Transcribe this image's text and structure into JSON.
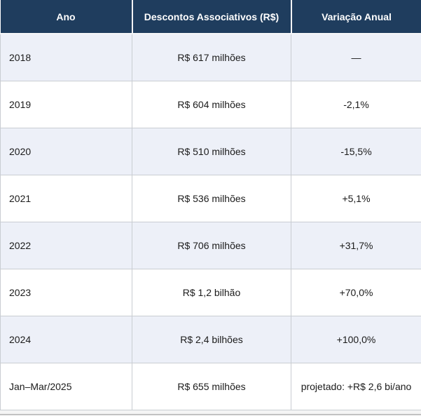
{
  "chart_data": {
    "type": "table",
    "columns": [
      "Ano",
      "Descontos Associativos (R$)",
      "Variação Anual"
    ],
    "rows": [
      [
        "2018",
        "R$ 617 milhões",
        "—"
      ],
      [
        "2019",
        "R$ 604 milhões",
        "-2,1%"
      ],
      [
        "2020",
        "R$ 510 milhões",
        "-15,5%"
      ],
      [
        "2021",
        "R$ 536 milhões",
        "+5,1%"
      ],
      [
        "2022",
        "R$ 706 milhões",
        "+31,7%"
      ],
      [
        "2023",
        "R$ 1,2 bilhão",
        "+70,0%"
      ],
      [
        "2024",
        "R$ 2,4 bilhões",
        "+100,0%"
      ],
      [
        "Jan–Mar/2025",
        "R$ 655 milhões",
        "projetado: +R$ 2,6 bi/ano"
      ]
    ],
    "layout": {
      "header_bg": "#1f3d5e",
      "header_text_color": "#ffffff",
      "alt_row_bg": "#edf0f8",
      "row_bg": "#ffffff",
      "border_color": "#c9cdd2",
      "first_column_align": "left",
      "other_columns_align": "center"
    }
  }
}
